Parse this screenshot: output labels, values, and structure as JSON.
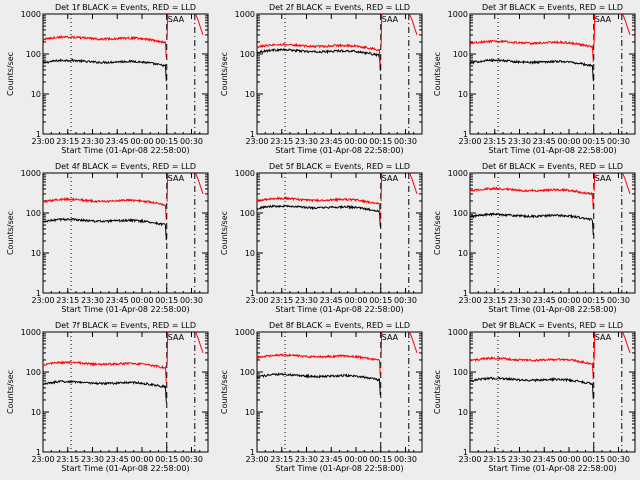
{
  "figure": {
    "background": "#ededed",
    "colors": {
      "events": "#000000",
      "lld": "#ff0000"
    }
  },
  "chart_data": [
    {
      "type": "line",
      "title": "Det 1f BLACK = Events, RED = LLD",
      "xlabel": "Start Time (01-Apr-08 22:58:00)",
      "ylabel": "Counts/sec",
      "y_scale": "log",
      "ylim": [
        1,
        1000
      ],
      "xlim": [
        "23:00",
        "00:40"
      ],
      "xticks": [
        "23:00",
        "23:15",
        "23:30",
        "23:45",
        "00:00",
        "00:15",
        "00:30"
      ],
      "yticks": [
        "1",
        "10",
        "100",
        "1000"
      ],
      "annotation": "SAA",
      "vlines": [
        {
          "x": "23:17",
          "style": "dotted"
        },
        {
          "x": "00:15",
          "style": "dashed"
        },
        {
          "x": "00:32",
          "style": "dash-dot"
        }
      ],
      "series": [
        {
          "name": "Events",
          "color": "#000000",
          "level": 60
        },
        {
          "name": "LLD",
          "color": "#ff0000",
          "level": 230
        }
      ]
    },
    {
      "type": "line",
      "title": "Det 2f BLACK = Events, RED = LLD",
      "xlabel": "Start Time (01-Apr-08 22:58:00)",
      "ylabel": "Counts/sec",
      "y_scale": "log",
      "ylim": [
        1,
        1000
      ],
      "xlim": [
        "23:00",
        "00:40"
      ],
      "xticks": [
        "23:00",
        "23:15",
        "23:30",
        "23:45",
        "00:00",
        "00:15",
        "00:30"
      ],
      "yticks": [
        "1",
        "10",
        "100",
        "1000"
      ],
      "annotation": "SAA",
      "vlines": [
        {
          "x": "23:17",
          "style": "dotted"
        },
        {
          "x": "00:15",
          "style": "dashed"
        },
        {
          "x": "00:32",
          "style": "dash-dot"
        }
      ],
      "series": [
        {
          "name": "Events",
          "color": "#000000",
          "level": 110
        },
        {
          "name": "LLD",
          "color": "#ff0000",
          "level": 150
        }
      ]
    },
    {
      "type": "line",
      "title": "Det 3f BLACK = Events, RED = LLD",
      "xlabel": "Start Time (01-Apr-08 22:58:00)",
      "ylabel": "Counts/sec",
      "y_scale": "log",
      "ylim": [
        1,
        1000
      ],
      "xlim": [
        "23:00",
        "00:40"
      ],
      "xticks": [
        "23:00",
        "23:15",
        "23:30",
        "23:45",
        "00:00",
        "00:15",
        "00:30"
      ],
      "yticks": [
        "1",
        "10",
        "100",
        "1000"
      ],
      "annotation": "SAA",
      "vlines": [
        {
          "x": "23:17",
          "style": "dotted"
        },
        {
          "x": "00:15",
          "style": "dashed"
        },
        {
          "x": "00:32",
          "style": "dash-dot"
        }
      ],
      "series": [
        {
          "name": "Events",
          "color": "#000000",
          "level": 60
        },
        {
          "name": "LLD",
          "color": "#ff0000",
          "level": 180
        }
      ]
    },
    {
      "type": "line",
      "title": "Det 4f BLACK = Events, RED = LLD",
      "xlabel": "Start Time (01-Apr-08 22:58:00)",
      "ylabel": "Counts/sec",
      "y_scale": "log",
      "ylim": [
        1,
        1000
      ],
      "xlim": [
        "23:00",
        "00:40"
      ],
      "xticks": [
        "23:00",
        "23:15",
        "23:30",
        "23:45",
        "00:00",
        "00:15",
        "00:30"
      ],
      "yticks": [
        "1",
        "10",
        "100",
        "1000"
      ],
      "annotation": "SAA",
      "vlines": [
        {
          "x": "23:17",
          "style": "dotted"
        },
        {
          "x": "00:15",
          "style": "dashed"
        },
        {
          "x": "00:32",
          "style": "dash-dot"
        }
      ],
      "series": [
        {
          "name": "Events",
          "color": "#000000",
          "level": 60
        },
        {
          "name": "LLD",
          "color": "#ff0000",
          "level": 190
        }
      ]
    },
    {
      "type": "line",
      "title": "Det 5f BLACK = Events, RED = LLD",
      "xlabel": "Start Time (01-Apr-08 22:58:00)",
      "ylabel": "Counts/sec",
      "y_scale": "log",
      "ylim": [
        1,
        1000
      ],
      "xlim": [
        "23:00",
        "00:40"
      ],
      "xticks": [
        "23:00",
        "23:15",
        "23:30",
        "23:45",
        "00:00",
        "00:15",
        "00:30"
      ],
      "yticks": [
        "1",
        "10",
        "100",
        "1000"
      ],
      "annotation": "SAA",
      "vlines": [
        {
          "x": "23:17",
          "style": "dotted"
        },
        {
          "x": "00:15",
          "style": "dashed"
        },
        {
          "x": "00:32",
          "style": "dash-dot"
        }
      ],
      "series": [
        {
          "name": "Events",
          "color": "#000000",
          "level": 130
        },
        {
          "name": "LLD",
          "color": "#ff0000",
          "level": 200
        }
      ]
    },
    {
      "type": "line",
      "title": "Det 6f BLACK = Events, RED = LLD",
      "xlabel": "Start Time (01-Apr-08 22:58:00)",
      "ylabel": "Counts/sec",
      "y_scale": "log",
      "ylim": [
        1,
        1000
      ],
      "xlim": [
        "23:00",
        "00:40"
      ],
      "xticks": [
        "23:00",
        "23:15",
        "23:30",
        "23:45",
        "00:00",
        "00:15",
        "00:30"
      ],
      "yticks": [
        "1",
        "10",
        "100",
        "1000"
      ],
      "annotation": "SAA",
      "vlines": [
        {
          "x": "23:17",
          "style": "dotted"
        },
        {
          "x": "00:15",
          "style": "dashed"
        },
        {
          "x": "00:32",
          "style": "dash-dot"
        }
      ],
      "series": [
        {
          "name": "Events",
          "color": "#000000",
          "level": 80
        },
        {
          "name": "LLD",
          "color": "#ff0000",
          "level": 350
        }
      ]
    },
    {
      "type": "line",
      "title": "Det 7f BLACK = Events, RED = LLD",
      "xlabel": "Start Time (01-Apr-08 22:58:00)",
      "ylabel": "Counts/sec",
      "y_scale": "log",
      "ylim": [
        1,
        1000
      ],
      "xlim": [
        "23:00",
        "00:40"
      ],
      "xticks": [
        "23:00",
        "23:15",
        "23:30",
        "23:45",
        "00:00",
        "00:15",
        "00:30"
      ],
      "yticks": [
        "1",
        "10",
        "100",
        "1000"
      ],
      "annotation": "SAA",
      "vlines": [
        {
          "x": "23:17",
          "style": "dotted"
        },
        {
          "x": "00:15",
          "style": "dashed"
        },
        {
          "x": "00:32",
          "style": "dash-dot"
        }
      ],
      "series": [
        {
          "name": "Events",
          "color": "#000000",
          "level": 50
        },
        {
          "name": "LLD",
          "color": "#ff0000",
          "level": 150
        }
      ]
    },
    {
      "type": "line",
      "title": "Det 8f BLACK = Events, RED = LLD",
      "xlabel": "Start Time (01-Apr-08 22:58:00)",
      "ylabel": "Counts/sec",
      "y_scale": "log",
      "ylim": [
        1,
        1000
      ],
      "xlim": [
        "23:00",
        "00:40"
      ],
      "xticks": [
        "23:00",
        "23:15",
        "23:30",
        "23:45",
        "00:00",
        "00:15",
        "00:30"
      ],
      "yticks": [
        "1",
        "10",
        "100",
        "1000"
      ],
      "annotation": "SAA",
      "vlines": [
        {
          "x": "23:17",
          "style": "dotted"
        },
        {
          "x": "00:15",
          "style": "dashed"
        },
        {
          "x": "00:32",
          "style": "dash-dot"
        }
      ],
      "series": [
        {
          "name": "Events",
          "color": "#000000",
          "level": 75
        },
        {
          "name": "LLD",
          "color": "#ff0000",
          "level": 230
        }
      ]
    },
    {
      "type": "line",
      "title": "Det 9f BLACK = Events, RED = LLD",
      "xlabel": "Start Time (01-Apr-08 22:58:00)",
      "ylabel": "Counts/sec",
      "y_scale": "log",
      "ylim": [
        1,
        1000
      ],
      "xlim": [
        "23:00",
        "00:40"
      ],
      "xticks": [
        "23:00",
        "23:15",
        "23:30",
        "23:45",
        "00:00",
        "00:15",
        "00:30"
      ],
      "yticks": [
        "1",
        "10",
        "100",
        "1000"
      ],
      "annotation": "SAA",
      "vlines": [
        {
          "x": "23:17",
          "style": "dotted"
        },
        {
          "x": "00:15",
          "style": "dashed"
        },
        {
          "x": "00:32",
          "style": "dash-dot"
        }
      ],
      "series": [
        {
          "name": "Events",
          "color": "#000000",
          "level": 60
        },
        {
          "name": "LLD",
          "color": "#ff0000",
          "level": 190
        }
      ]
    }
  ]
}
